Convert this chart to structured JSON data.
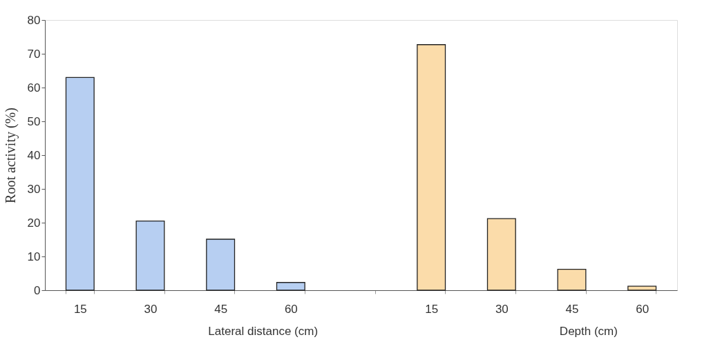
{
  "chart_data": {
    "type": "bar",
    "categories": [
      "15",
      "30",
      "45",
      "60",
      null,
      "15",
      "30",
      "45",
      "60"
    ],
    "series": [
      {
        "color": "#b7cff2",
        "values": [
          63,
          20.5,
          15.1,
          2.3,
          null,
          null,
          null,
          null,
          null
        ]
      },
      {
        "color": "#fbdcaa",
        "values": [
          null,
          null,
          null,
          null,
          null,
          72.7,
          21.2,
          6.2,
          1.2
        ]
      }
    ],
    "ylabel": "Root activity (%)",
    "ylim": [
      0,
      80
    ],
    "yticks": [
      0,
      10,
      20,
      30,
      40,
      50,
      60,
      70,
      80
    ],
    "annotations": [
      "Lateral distance (cm)",
      "Depth (cm)"
    ],
    "grid": false
  }
}
